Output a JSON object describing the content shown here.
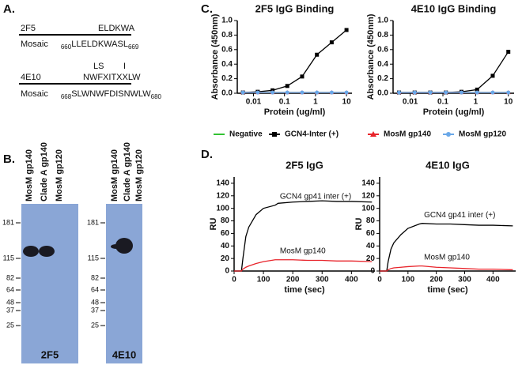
{
  "panels": {
    "a": {
      "label": "A.",
      "sequences": [
        {
          "antibody": "2F5",
          "epitope": "ELDKWA",
          "construct": "Mosaic",
          "start": "660",
          "sequence": "LLELDKWASL",
          "end": "669"
        },
        {
          "antibody": "4E10",
          "variants": [
            "LS",
            "I"
          ],
          "epitope": "NWFXITXXLW",
          "construct": "Mosaic",
          "start": "668",
          "sequence": "SLWNWFDISNWLW",
          "end": "680"
        }
      ]
    },
    "b": {
      "label": "B.",
      "blots": [
        {
          "lanes": [
            "MosM gp140",
            "Clade A gp140",
            "MosM gp120"
          ],
          "markers": [
            "181",
            "115",
            "82",
            "64",
            "48",
            "37",
            "25"
          ],
          "antibody": "2F5"
        },
        {
          "lanes": [
            "MosM gp140",
            "Clade A gp140",
            "MosM gp120"
          ],
          "markers": [
            "181",
            "115",
            "82",
            "64",
            "48",
            "37",
            "25"
          ],
          "antibody": "4E10"
        }
      ]
    },
    "c": {
      "label": "C."
    },
    "d": {
      "label": "D."
    }
  },
  "chart_data": [
    {
      "type": "line",
      "title": "2F5 IgG Binding",
      "x_label": "Protein (ug/ml)",
      "y_label": "Absorbance (450nm)",
      "log_x": true,
      "x": [
        0.00457,
        0.0137,
        0.0412,
        0.123,
        0.37,
        1.111,
        3.333,
        10
      ],
      "xlim": [
        0.003,
        15
      ],
      "xticks": [
        0.01,
        0.1,
        1,
        10
      ],
      "ylim": [
        0,
        1
      ],
      "yticks": [
        {
          "value": 0,
          "label": "0.0"
        },
        0.2,
        0.4,
        0.6,
        0.8,
        {
          "value": 1,
          "label": "1.0"
        }
      ],
      "series": [
        {
          "name": "Negative",
          "color": "#33c233",
          "marker": "none",
          "values": [
            0.01,
            0.01,
            0.01,
            0.01,
            0.01,
            0.01,
            0.01,
            0.01
          ]
        },
        {
          "name": "GCN4-Inter (+)",
          "color": "#000000",
          "marker": "square",
          "values": [
            0.01,
            0.02,
            0.04,
            0.1,
            0.23,
            0.53,
            0.7,
            0.87
          ]
        },
        {
          "name": "MosM gp140",
          "color": "#e8232a",
          "marker": "triangle",
          "values": [
            0.01,
            0.01,
            0.01,
            0.01,
            0.01,
            0.01,
            0.01,
            0.01
          ]
        },
        {
          "name": "MosM gp120",
          "color": "#6aa8e8",
          "marker": "circle",
          "values": [
            0.01,
            0.01,
            0.01,
            0.01,
            0.01,
            0.01,
            0.01,
            0.01
          ]
        }
      ]
    },
    {
      "type": "line",
      "title": "4E10 IgG Binding",
      "x_label": "Protein (ug/ml)",
      "y_label": "Absorbance (450nm)",
      "log_x": true,
      "x": [
        0.00457,
        0.0137,
        0.0412,
        0.123,
        0.37,
        1.111,
        3.333,
        10
      ],
      "xlim": [
        0.003,
        15
      ],
      "xticks": [
        0.01,
        0.1,
        1,
        10
      ],
      "ylim": [
        0,
        1
      ],
      "yticks": [
        {
          "value": 0,
          "label": "0.0"
        },
        0.2,
        0.4,
        0.6,
        0.8,
        {
          "value": 1,
          "label": "1.0"
        }
      ],
      "series": [
        {
          "color": "#33c233",
          "marker": "none",
          "values": [
            0.01,
            0.01,
            0.01,
            0.01,
            0.01,
            0.01,
            0.01,
            0.01
          ]
        },
        {
          "color": "#000000",
          "marker": "square",
          "values": [
            0.01,
            0.01,
            0.01,
            0.01,
            0.02,
            0.05,
            0.24,
            0.57
          ]
        },
        {
          "color": "#e8232a",
          "marker": "triangle",
          "values": [
            0.01,
            0.01,
            0.01,
            0.01,
            0.01,
            0.01,
            0.01,
            0.01
          ]
        },
        {
          "color": "#6aa8e8",
          "marker": "circle",
          "values": [
            0.01,
            0.01,
            0.01,
            0.01,
            0.01,
            0.01,
            0.01,
            0.01
          ]
        }
      ]
    },
    {
      "type": "line",
      "title": "2F5 IgG",
      "x_label": "time (sec)",
      "y_label": "RU",
      "x": [
        0,
        20,
        25,
        30,
        40,
        50,
        75,
        100,
        140,
        150,
        200,
        250,
        300,
        350,
        400,
        470
      ],
      "xlim": [
        0,
        480
      ],
      "xticks": [
        0,
        100,
        200,
        300,
        400
      ],
      "ylim": [
        0,
        150
      ],
      "yticks": [
        0,
        20,
        40,
        60,
        80,
        100,
        120,
        140
      ],
      "series": [
        {
          "name": "GCN4 gp41 inter (+)",
          "color": "#000000",
          "marker": "none",
          "values": [
            0,
            0,
            0,
            20,
            55,
            70,
            90,
            100,
            105,
            108,
            110,
            111,
            112,
            111,
            111,
            110
          ]
        },
        {
          "name": "MosM gp140",
          "color": "#e8232a",
          "marker": "none",
          "values": [
            0,
            0,
            0,
            3,
            6,
            8,
            12,
            15,
            18,
            18,
            18,
            17,
            17,
            16,
            16,
            15
          ]
        }
      ]
    },
    {
      "type": "line",
      "title": "4E10 IgG",
      "x_label": "time (sec)",
      "y_label": "RU",
      "x": [
        0,
        20,
        25,
        30,
        40,
        50,
        75,
        100,
        140,
        150,
        200,
        250,
        300,
        350,
        400,
        470
      ],
      "xlim": [
        0,
        480
      ],
      "xticks": [
        0,
        100,
        200,
        300,
        400
      ],
      "ylim": [
        0,
        150
      ],
      "yticks": [
        0,
        20,
        40,
        60,
        80,
        100,
        120,
        140
      ],
      "series": [
        {
          "name": "GCN4 gp41 inter (+)",
          "color": "#000000",
          "marker": "none",
          "values": [
            0,
            0,
            0,
            15,
            35,
            45,
            58,
            68,
            75,
            76,
            75,
            75,
            74,
            73,
            73,
            72
          ]
        },
        {
          "name": "MosM gp140",
          "color": "#e8232a",
          "marker": "none",
          "values": [
            0,
            0,
            0,
            2,
            4,
            5,
            6,
            7,
            8,
            8,
            6,
            5,
            4,
            3,
            3,
            2
          ]
        }
      ]
    }
  ]
}
